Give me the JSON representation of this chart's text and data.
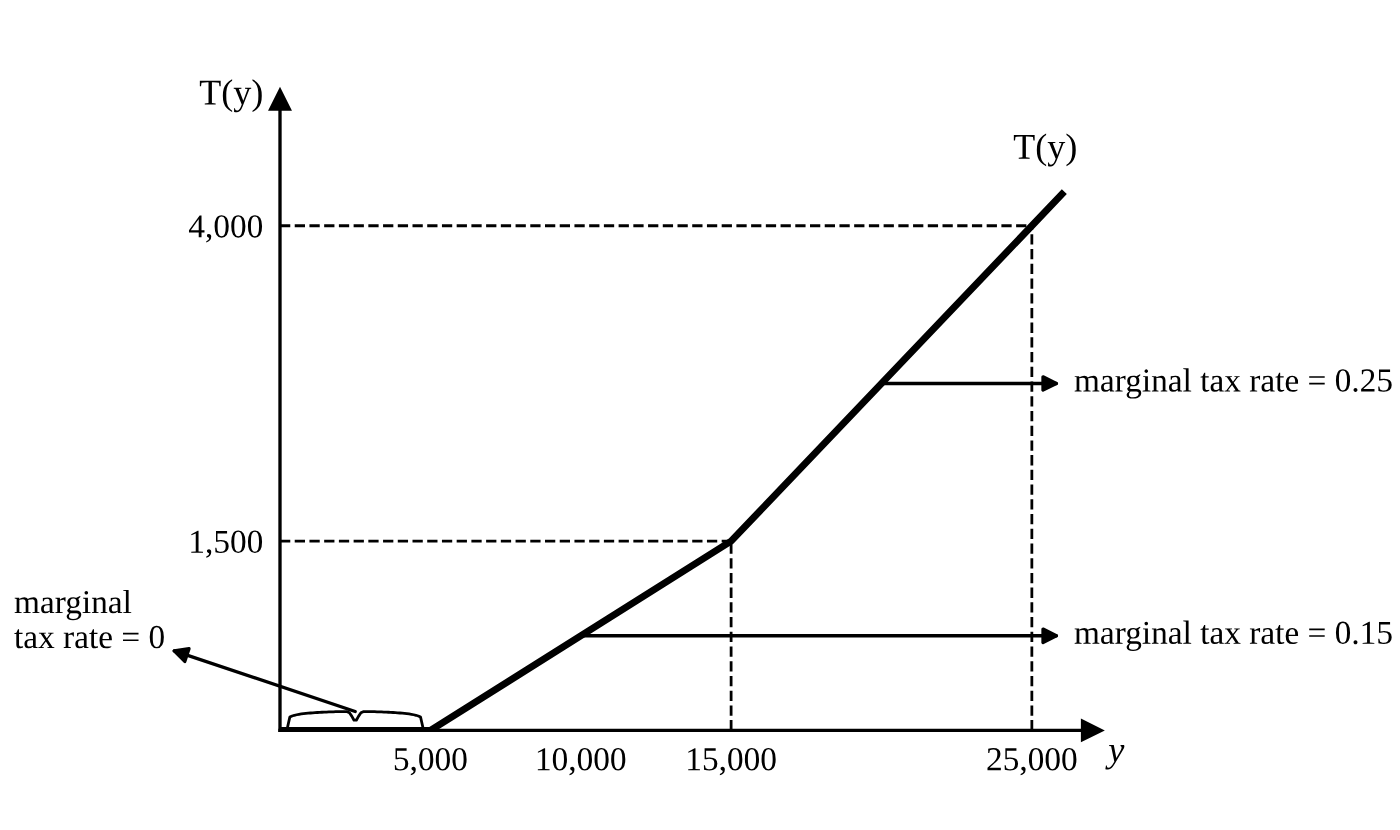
{
  "chart_data": {
    "type": "line",
    "xlabel": "y",
    "ylabel": "T(y)",
    "x": [
      0,
      5000,
      15000,
      25000,
      26000
    ],
    "series": [
      {
        "color": "#000000",
        "values": [
          0,
          0,
          1500,
          4000,
          4250
        ]
      }
    ],
    "xlim": [
      0,
      27000
    ],
    "ylim": [
      0,
      5000
    ],
    "xticks": [
      {
        "value": 5000,
        "label": "5,000"
      },
      {
        "value": 10000,
        "label": "10,000"
      },
      {
        "value": 15000,
        "label": "15,000"
      },
      {
        "value": 25000,
        "label": "25,000"
      }
    ],
    "yticks": [
      {
        "value": 1500,
        "label": "1,500"
      },
      {
        "value": 4000,
        "label": "4,000"
      }
    ],
    "ref_lines": [
      {
        "axis": "x",
        "value": 15000,
        "line_style": "dashed",
        "color": "#000000"
      },
      {
        "axis": "x",
        "value": 25000,
        "line_style": "dashed",
        "color": "#000000"
      },
      {
        "axis": "y",
        "value": 1500,
        "line_style": "dashed",
        "color": "#000000"
      },
      {
        "axis": "y",
        "value": 4000,
        "line_style": "dashed",
        "color": "#000000"
      }
    ],
    "annotations": [
      {
        "text": "T(y)",
        "x": 26000,
        "y": 4250
      },
      {
        "text": "marginal tax rate = 0.25",
        "x": 20000,
        "y": 2750
      },
      {
        "text": "marginal tax rate = 0.15",
        "x": 10000,
        "y": 750
      },
      "marginal\ntax rate = 0"
    ],
    "grid": false,
    "legend": false,
    "marker": "none",
    "line_style": "solid"
  }
}
